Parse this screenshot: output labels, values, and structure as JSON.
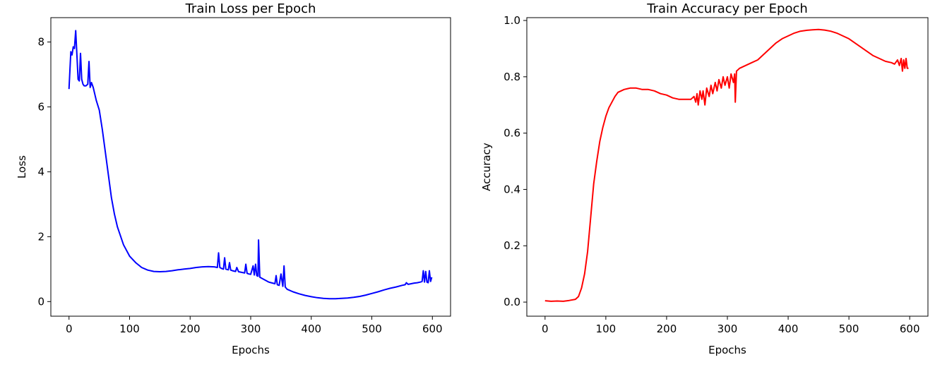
{
  "chart_data": [
    {
      "type": "line",
      "title": "Train Loss per Epoch",
      "xlabel": "Epochs",
      "ylabel": "Loss",
      "xlim": [
        -30,
        630
      ],
      "ylim": [
        -0.45,
        8.75
      ],
      "xticks": [
        0,
        100,
        200,
        300,
        400,
        500,
        600
      ],
      "yticks": [
        0,
        2,
        4,
        6,
        8
      ],
      "xtick_labels": [
        "0",
        "100",
        "200",
        "300",
        "400",
        "500",
        "600"
      ],
      "ytick_labels": [
        "0",
        "2",
        "4",
        "6",
        "8"
      ],
      "grid": false,
      "color": "#0000ff",
      "series": [
        {
          "x": [
            0,
            3,
            5,
            7,
            9,
            11,
            13,
            15,
            17,
            19,
            21,
            23,
            25,
            28,
            31,
            33,
            35,
            37,
            40,
            45,
            50,
            55,
            60,
            65,
            70,
            75,
            80,
            90,
            100,
            110,
            120,
            130,
            140,
            150,
            160,
            170,
            180,
            190,
            200,
            210,
            220,
            230,
            240,
            245,
            247,
            249,
            252,
            255,
            257,
            259,
            263,
            265,
            267,
            270,
            275,
            277,
            280,
            285,
            290,
            292,
            294,
            297,
            300,
            304,
            306,
            308,
            310,
            312,
            313,
            315,
            320,
            330,
            340,
            342,
            344,
            347,
            350,
            353,
            355,
            357,
            360,
            370,
            380,
            390,
            400,
            410,
            420,
            430,
            440,
            450,
            460,
            470,
            480,
            490,
            500,
            510,
            520,
            530,
            540,
            550,
            555,
            557,
            560,
            565,
            570,
            575,
            580,
            583,
            585,
            587,
            589,
            591,
            593,
            595,
            597,
            599
          ],
          "y": [
            6.55,
            7.7,
            7.6,
            7.85,
            7.8,
            8.35,
            7.6,
            6.85,
            6.8,
            7.65,
            6.85,
            6.7,
            6.65,
            6.65,
            6.7,
            7.4,
            6.6,
            6.75,
            6.6,
            6.2,
            5.9,
            5.3,
            4.6,
            3.9,
            3.2,
            2.7,
            2.3,
            1.75,
            1.4,
            1.2,
            1.05,
            0.97,
            0.93,
            0.92,
            0.93,
            0.95,
            0.98,
            1.0,
            1.02,
            1.05,
            1.07,
            1.08,
            1.07,
            1.05,
            1.5,
            1.05,
            1.02,
            1.0,
            1.35,
            1.0,
            0.98,
            1.2,
            0.97,
            0.95,
            0.93,
            1.05,
            0.92,
            0.9,
            0.88,
            1.15,
            0.87,
            0.85,
            0.84,
            1.1,
            0.82,
            1.15,
            0.8,
            0.78,
            1.9,
            0.75,
            0.7,
            0.6,
            0.55,
            0.8,
            0.52,
            0.5,
            0.85,
            0.47,
            1.1,
            0.45,
            0.38,
            0.3,
            0.24,
            0.19,
            0.15,
            0.12,
            0.1,
            0.09,
            0.09,
            0.1,
            0.11,
            0.13,
            0.16,
            0.2,
            0.25,
            0.3,
            0.36,
            0.41,
            0.45,
            0.5,
            0.52,
            0.58,
            0.53,
            0.55,
            0.57,
            0.58,
            0.6,
            0.62,
            0.95,
            0.6,
            0.93,
            0.6,
            0.58,
            0.95,
            0.62,
            0.75
          ]
        }
      ]
    },
    {
      "type": "line",
      "title": "Train Accuracy per Epoch",
      "xlabel": "Epochs",
      "ylabel": "Accuracy",
      "xlim": [
        -30,
        630
      ],
      "ylim": [
        -0.05,
        1.01
      ],
      "xticks": [
        0,
        100,
        200,
        300,
        400,
        500,
        600
      ],
      "yticks": [
        0.0,
        0.2,
        0.4,
        0.6,
        0.8,
        1.0
      ],
      "xtick_labels": [
        "0",
        "100",
        "200",
        "300",
        "400",
        "500",
        "600"
      ],
      "ytick_labels": [
        "0.0",
        "0.2",
        "0.4",
        "0.6",
        "0.8",
        "1.0"
      ],
      "grid": false,
      "color": "#ff0000",
      "series": [
        {
          "x": [
            0,
            10,
            20,
            30,
            40,
            50,
            55,
            60,
            65,
            70,
            75,
            80,
            85,
            90,
            95,
            100,
            105,
            110,
            115,
            120,
            130,
            140,
            150,
            160,
            170,
            180,
            190,
            200,
            210,
            220,
            230,
            240,
            245,
            248,
            250,
            252,
            255,
            258,
            260,
            263,
            266,
            270,
            273,
            276,
            280,
            283,
            286,
            290,
            293,
            296,
            300,
            303,
            306,
            310,
            312,
            313,
            315,
            320,
            330,
            340,
            350,
            360,
            370,
            380,
            390,
            400,
            410,
            420,
            430,
            440,
            450,
            460,
            470,
            480,
            490,
            500,
            510,
            520,
            530,
            540,
            550,
            560,
            570,
            575,
            580,
            583,
            586,
            588,
            590,
            592,
            594,
            596,
            598
          ],
          "y": [
            0.005,
            0.003,
            0.004,
            0.003,
            0.006,
            0.01,
            0.02,
            0.05,
            0.1,
            0.18,
            0.3,
            0.42,
            0.5,
            0.57,
            0.62,
            0.66,
            0.69,
            0.71,
            0.73,
            0.745,
            0.755,
            0.76,
            0.76,
            0.755,
            0.755,
            0.75,
            0.74,
            0.735,
            0.725,
            0.72,
            0.72,
            0.72,
            0.73,
            0.71,
            0.74,
            0.7,
            0.75,
            0.72,
            0.75,
            0.7,
            0.76,
            0.73,
            0.77,
            0.74,
            0.78,
            0.75,
            0.79,
            0.76,
            0.8,
            0.77,
            0.8,
            0.76,
            0.81,
            0.78,
            0.81,
            0.71,
            0.82,
            0.83,
            0.84,
            0.85,
            0.86,
            0.88,
            0.9,
            0.92,
            0.935,
            0.945,
            0.955,
            0.962,
            0.965,
            0.967,
            0.968,
            0.966,
            0.962,
            0.955,
            0.945,
            0.935,
            0.92,
            0.905,
            0.89,
            0.875,
            0.865,
            0.855,
            0.85,
            0.845,
            0.86,
            0.84,
            0.865,
            0.82,
            0.86,
            0.83,
            0.865,
            0.83,
            0.83
          ]
        }
      ]
    }
  ]
}
